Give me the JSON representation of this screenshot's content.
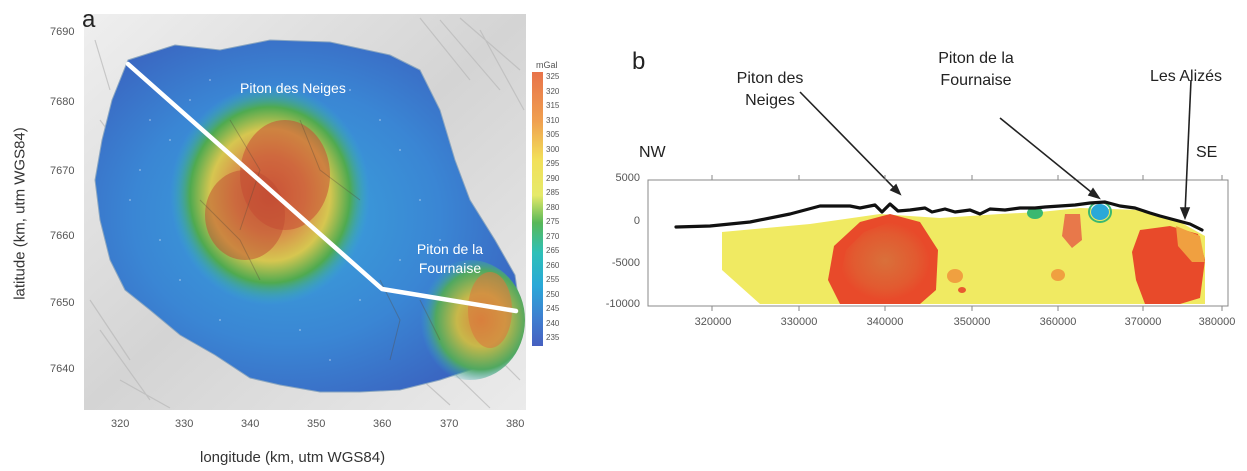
{
  "panel_a": {
    "label": "a",
    "y_ticks": [
      "7690",
      "7680",
      "7670",
      "7660",
      "7650",
      "7640"
    ],
    "x_ticks": [
      "320",
      "330",
      "340",
      "350",
      "360",
      "370",
      "380"
    ],
    "y_axis_title": "latitude (km, utm WGS84)",
    "x_axis_title": "longitude (km, utm WGS84)",
    "label_neiges": "Piton des Neiges",
    "label_fournaise_1": "Piton de la",
    "label_fournaise_2": "Fournaise",
    "colorbar": {
      "title": "mGal",
      "ticks": [
        "325",
        "320",
        "315",
        "310",
        "305",
        "300",
        "295",
        "290",
        "285",
        "280",
        "275",
        "270",
        "265",
        "260",
        "255",
        "250",
        "245",
        "240",
        "235"
      ]
    }
  },
  "panel_b": {
    "label": "b",
    "label_neiges_1": "Piton des",
    "label_neiges_2": "Neiges",
    "label_fournaise_1": "Piton de la",
    "label_fournaise_2": "Fournaise",
    "label_alizes": "Les Alizés",
    "label_nw": "NW",
    "label_se": "SE",
    "y_ticks": [
      "5000",
      "0",
      "-5000",
      "-10000"
    ],
    "x_ticks": [
      "320000",
      "330000",
      "340000",
      "350000",
      "360000",
      "370000",
      "380000"
    ]
  }
}
